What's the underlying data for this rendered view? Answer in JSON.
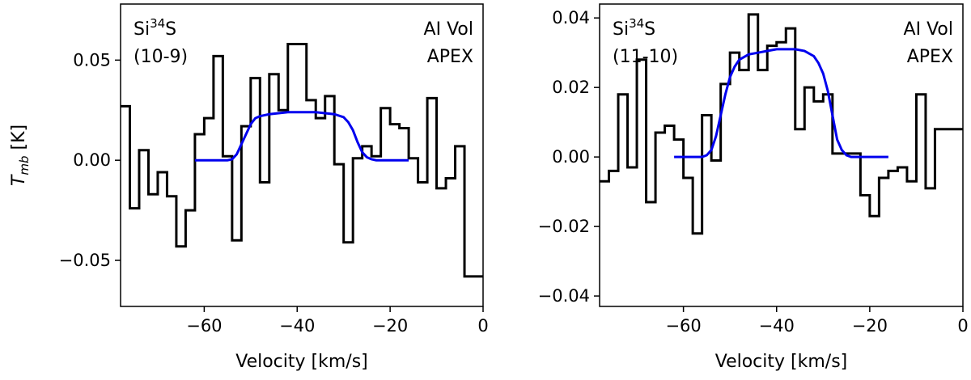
{
  "chart_data": [
    {
      "type": "line",
      "panel": "left",
      "molecule": "Si",
      "isotope": "34",
      "atom": "S",
      "transition": "(10-9)",
      "source": "AI Vol",
      "telescope": "APEX",
      "xlabel": "Velocity [km/s]",
      "ylabel_main": "T",
      "ylabel_sub": "mb",
      "ylabel_unit": " [K]",
      "xlim": [
        -78,
        0
      ],
      "ylim": [
        -0.073,
        0.078
      ],
      "xticks": [
        -60,
        -40,
        -20,
        0
      ],
      "xtick_labels": [
        "−60",
        "−40",
        "−20",
        "0"
      ],
      "yticks": [
        -0.05,
        0,
        0.05
      ],
      "ytick_labels": [
        "−0.05",
        "0.00",
        "0.05"
      ],
      "series": [
        {
          "name": "observed",
          "style": "steps",
          "color": "#000000",
          "x": [
            -78,
            -76,
            -74,
            -72,
            -70,
            -68,
            -66,
            -64,
            -62,
            -60,
            -58,
            -56,
            -54,
            -52,
            -50,
            -48,
            -46,
            -44,
            -42,
            -40,
            -38,
            -36,
            -34,
            -32,
            -30,
            -28,
            -26,
            -24,
            -22,
            -20,
            -18,
            -16,
            -14,
            -12,
            -10,
            -8,
            -6,
            -4,
            -2
          ],
          "y": [
            0.027,
            -0.024,
            0.005,
            -0.017,
            -0.006,
            -0.018,
            -0.043,
            -0.025,
            0.013,
            0.021,
            0.052,
            0.002,
            -0.04,
            0.017,
            0.041,
            -0.011,
            0.043,
            0.025,
            0.058,
            0.058,
            0.03,
            0.021,
            0.032,
            -0.002,
            -0.041,
            0.001,
            0.007,
            0.002,
            0.026,
            0.018,
            0.016,
            0.001,
            -0.011,
            0.031,
            -0.014,
            -0.009,
            0.007,
            -0.058,
            -0.058
          ]
        },
        {
          "name": "model",
          "style": "line",
          "color": "#0000ee",
          "x": [
            -62,
            -55,
            -54,
            -53,
            -52,
            -51,
            -50,
            -49,
            -48,
            -46,
            -44,
            -42,
            -40,
            -38,
            -36,
            -34,
            -32,
            -30,
            -29,
            -28,
            -27,
            -26,
            -25,
            -24,
            -23,
            -22,
            -20,
            -18,
            -16
          ],
          "y": [
            0,
            0,
            0.0005,
            0.003,
            0.008,
            0.013,
            0.018,
            0.021,
            0.022,
            0.023,
            0.0235,
            0.024,
            0.024,
            0.024,
            0.024,
            0.0235,
            0.023,
            0.0215,
            0.019,
            0.015,
            0.009,
            0.004,
            0.0015,
            0.0005,
            0,
            0,
            0,
            0,
            0
          ]
        }
      ]
    },
    {
      "type": "line",
      "panel": "right",
      "molecule": "Si",
      "isotope": "34",
      "atom": "S",
      "transition": "(11-10)",
      "source": "AI Vol",
      "telescope": "APEX",
      "xlabel": "Velocity [km/s]",
      "xlim": [
        -78,
        0
      ],
      "ylim": [
        -0.043,
        0.044
      ],
      "xticks": [
        -60,
        -40,
        -20,
        0
      ],
      "xtick_labels": [
        "−60",
        "−40",
        "−20",
        "0"
      ],
      "yticks": [
        -0.04,
        -0.02,
        0,
        0.02,
        0.04
      ],
      "ytick_labels": [
        "−0.04",
        "−0.02",
        "0.00",
        "0.02",
        "0.04"
      ],
      "series": [
        {
          "name": "observed",
          "style": "steps",
          "color": "#000000",
          "x": [
            -78,
            -76,
            -74,
            -72,
            -70,
            -68,
            -66,
            -64,
            -62,
            -60,
            -58,
            -56,
            -54,
            -52,
            -50,
            -48,
            -46,
            -44,
            -42,
            -40,
            -38,
            -36,
            -34,
            -32,
            -30,
            -28,
            -26,
            -24,
            -22,
            -20,
            -18,
            -16,
            -14,
            -12,
            -10,
            -8,
            -6,
            -4,
            -2
          ],
          "y": [
            -0.007,
            -0.004,
            0.018,
            -0.003,
            0.028,
            -0.013,
            0.007,
            0.009,
            0.005,
            -0.006,
            -0.022,
            0.012,
            -0.001,
            0.021,
            0.03,
            0.025,
            0.041,
            0.025,
            0.032,
            0.033,
            0.037,
            0.008,
            0.02,
            0.016,
            0.018,
            0.001,
            0.001,
            0.001,
            -0.011,
            -0.017,
            -0.006,
            -0.004,
            -0.003,
            -0.007,
            0.018,
            -0.009,
            0.008,
            0.008,
            0.008
          ]
        },
        {
          "name": "model",
          "style": "line",
          "color": "#0000ee",
          "x": [
            -62,
            -56,
            -55,
            -54,
            -53,
            -52,
            -51,
            -50,
            -49,
            -48,
            -46,
            -44,
            -42,
            -40,
            -38,
            -36,
            -34,
            -32,
            -31,
            -30,
            -29,
            -28,
            -27,
            -26,
            -25,
            -24,
            -22,
            -20,
            -18,
            -16
          ],
          "y": [
            0,
            0,
            0.0005,
            0.002,
            0.006,
            0.012,
            0.018,
            0.023,
            0.026,
            0.028,
            0.0295,
            0.03,
            0.0305,
            0.031,
            0.031,
            0.031,
            0.0305,
            0.029,
            0.027,
            0.024,
            0.019,
            0.012,
            0.005,
            0.002,
            0.0005,
            0,
            0,
            0,
            0,
            0
          ]
        }
      ]
    }
  ]
}
